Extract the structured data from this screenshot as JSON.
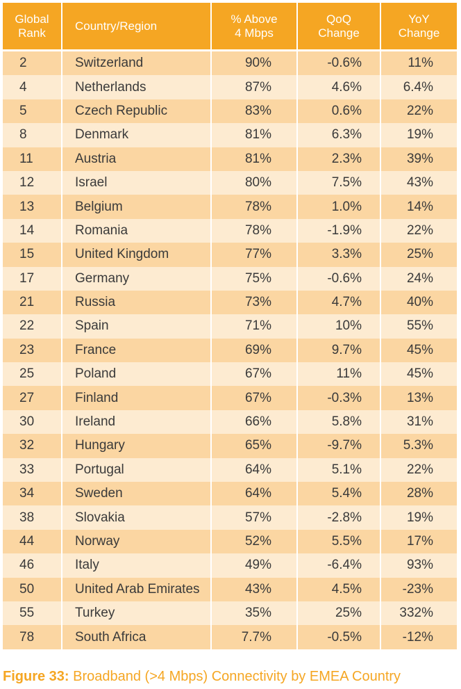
{
  "table": {
    "headers": {
      "rank_line1": "Global",
      "rank_line2": "Rank",
      "country": "Country/Region",
      "pct_line1": "% Above",
      "pct_line2": "4 Mbps",
      "qoq_line1": "QoQ",
      "qoq_line2": "Change",
      "yoy_line1": "YoY",
      "yoy_line2": "Change"
    },
    "rows": [
      {
        "rank": "2",
        "country": "Switzerland",
        "pct": "90%",
        "qoq": "-0.6%",
        "yoy": "11%"
      },
      {
        "rank": "4",
        "country": "Netherlands",
        "pct": "87%",
        "qoq": "4.6%",
        "yoy": "6.4%"
      },
      {
        "rank": "5",
        "country": "Czech Republic",
        "pct": "83%",
        "qoq": "0.6%",
        "yoy": "22%"
      },
      {
        "rank": "8",
        "country": "Denmark",
        "pct": "81%",
        "qoq": "6.3%",
        "yoy": "19%"
      },
      {
        "rank": "11",
        "country": "Austria",
        "pct": "81%",
        "qoq": "2.3%",
        "yoy": "39%"
      },
      {
        "rank": "12",
        "country": "Israel",
        "pct": "80%",
        "qoq": "7.5%",
        "yoy": "43%"
      },
      {
        "rank": "13",
        "country": "Belgium",
        "pct": "78%",
        "qoq": "1.0%",
        "yoy": "14%"
      },
      {
        "rank": "14",
        "country": "Romania",
        "pct": "78%",
        "qoq": "-1.9%",
        "yoy": "22%"
      },
      {
        "rank": "15",
        "country": "United Kingdom",
        "pct": "77%",
        "qoq": "3.3%",
        "yoy": "25%"
      },
      {
        "rank": "17",
        "country": "Germany",
        "pct": "75%",
        "qoq": "-0.6%",
        "yoy": "24%"
      },
      {
        "rank": "21",
        "country": "Russia",
        "pct": "73%",
        "qoq": "4.7%",
        "yoy": "40%"
      },
      {
        "rank": "22",
        "country": "Spain",
        "pct": "71%",
        "qoq": "10%",
        "yoy": "55%"
      },
      {
        "rank": "23",
        "country": "France",
        "pct": "69%",
        "qoq": "9.7%",
        "yoy": "45%"
      },
      {
        "rank": "25",
        "country": "Poland",
        "pct": "67%",
        "qoq": "11%",
        "yoy": "45%"
      },
      {
        "rank": "27",
        "country": "Finland",
        "pct": "67%",
        "qoq": "-0.3%",
        "yoy": "13%"
      },
      {
        "rank": "30",
        "country": "Ireland",
        "pct": "66%",
        "qoq": "5.8%",
        "yoy": "31%"
      },
      {
        "rank": "32",
        "country": "Hungary",
        "pct": "65%",
        "qoq": "-9.7%",
        "yoy": "5.3%"
      },
      {
        "rank": "33",
        "country": "Portugal",
        "pct": "64%",
        "qoq": "5.1%",
        "yoy": "22%"
      },
      {
        "rank": "34",
        "country": "Sweden",
        "pct": "64%",
        "qoq": "5.4%",
        "yoy": "28%"
      },
      {
        "rank": "38",
        "country": "Slovakia",
        "pct": "57%",
        "qoq": "-2.8%",
        "yoy": "19%"
      },
      {
        "rank": "44",
        "country": "Norway",
        "pct": "52%",
        "qoq": "5.5%",
        "yoy": "17%"
      },
      {
        "rank": "46",
        "country": "Italy",
        "pct": "49%",
        "qoq": "-6.4%",
        "yoy": "93%"
      },
      {
        "rank": "50",
        "country": "United Arab Emirates",
        "pct": "43%",
        "qoq": "4.5%",
        "yoy": "-23%"
      },
      {
        "rank": "55",
        "country": "Turkey",
        "pct": "35%",
        "qoq": "25%",
        "yoy": "332%"
      },
      {
        "rank": "78",
        "country": "South Africa",
        "pct": "7.7%",
        "qoq": "-0.5%",
        "yoy": "-12%"
      }
    ]
  },
  "caption": {
    "label": "Figure 33:",
    "text": " Broadband (>4 Mbps) Connectivity by EMEA Country"
  },
  "colors": {
    "header_bg": "#f5a623",
    "row_dark": "#fbd6a2",
    "row_light": "#fdebd1",
    "caption": "#f5a623"
  }
}
